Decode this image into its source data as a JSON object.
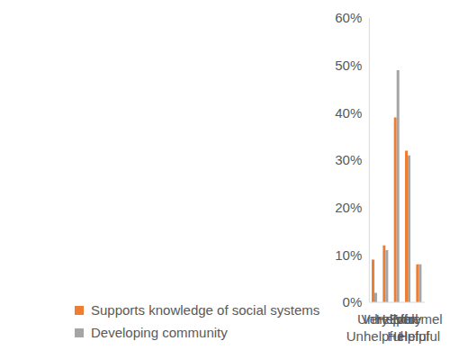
{
  "chart_data": {
    "type": "bar",
    "categories": [
      "Very Unhelpful",
      "Unhelpful",
      "Helpful",
      "Very Helpful",
      "Extremely Helpful"
    ],
    "series": [
      {
        "name": "Supports knowledge of social systems",
        "color": "#ed7d31",
        "values": [
          9,
          12,
          39,
          32,
          8
        ]
      },
      {
        "name": "Developing community",
        "color": "#a5a5a5",
        "values": [
          2,
          11,
          49,
          31,
          8
        ]
      }
    ],
    "ylim": [
      0,
      60
    ],
    "yticks": [
      {
        "value": 0,
        "label": "0%"
      },
      {
        "value": 10,
        "label": "10%"
      },
      {
        "value": 20,
        "label": "20%"
      },
      {
        "value": 30,
        "label": "30%"
      },
      {
        "value": 40,
        "label": "40%"
      },
      {
        "value": 50,
        "label": "50%"
      },
      {
        "value": 60,
        "label": "60%"
      }
    ],
    "grid": false,
    "legend": "bottom"
  }
}
